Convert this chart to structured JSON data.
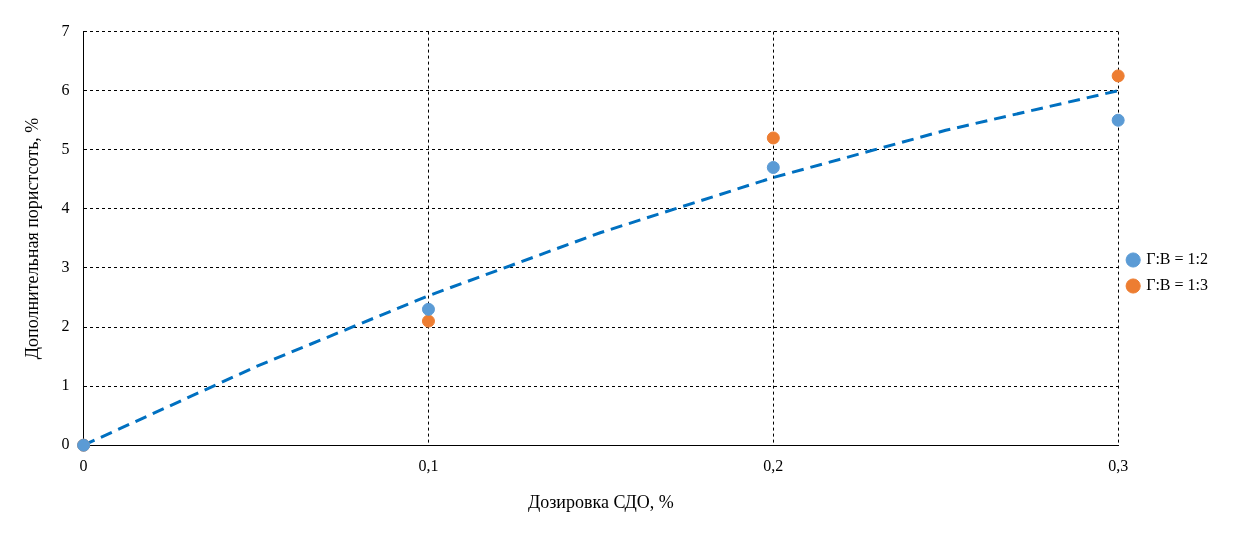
{
  "chart_data": {
    "type": "scatter",
    "xlabel": "Дозировка СДО, %",
    "ylabel": "Дополнительная пористсоть, %",
    "x": [
      0,
      0.1,
      0.2,
      0.3
    ],
    "series": [
      {
        "name": "Г:В = 1:2",
        "color": "#5b9bd5",
        "values": [
          0,
          2.3,
          4.7,
          5.5
        ]
      },
      {
        "name": "Г:В = 1:3",
        "color": "#ed7d31",
        "values": [
          0,
          2.1,
          5.2,
          6.25
        ]
      },
      {
        "type": "line",
        "color": "#0070c0",
        "line_style": "dashed",
        "marker": "none",
        "x": [
          0,
          0.05,
          0.1,
          0.15,
          0.2,
          0.25,
          0.3
        ],
        "values": [
          0,
          1.33,
          2.53,
          3.6,
          4.53,
          5.33,
          6
        ]
      }
    ],
    "xlim": [
      0,
      0.3
    ],
    "xticks": [
      {
        "value": 0,
        "label": "0"
      },
      {
        "value": 0.1,
        "label": "0,1"
      },
      {
        "value": 0.2,
        "label": "0,2"
      },
      {
        "value": 0.3,
        "label": "0,3"
      }
    ],
    "ylim": [
      0,
      7
    ],
    "yticks": [
      0,
      1,
      2,
      3,
      4,
      5,
      6,
      7
    ],
    "grid": true,
    "legend": "right",
    "marker": "circle"
  }
}
